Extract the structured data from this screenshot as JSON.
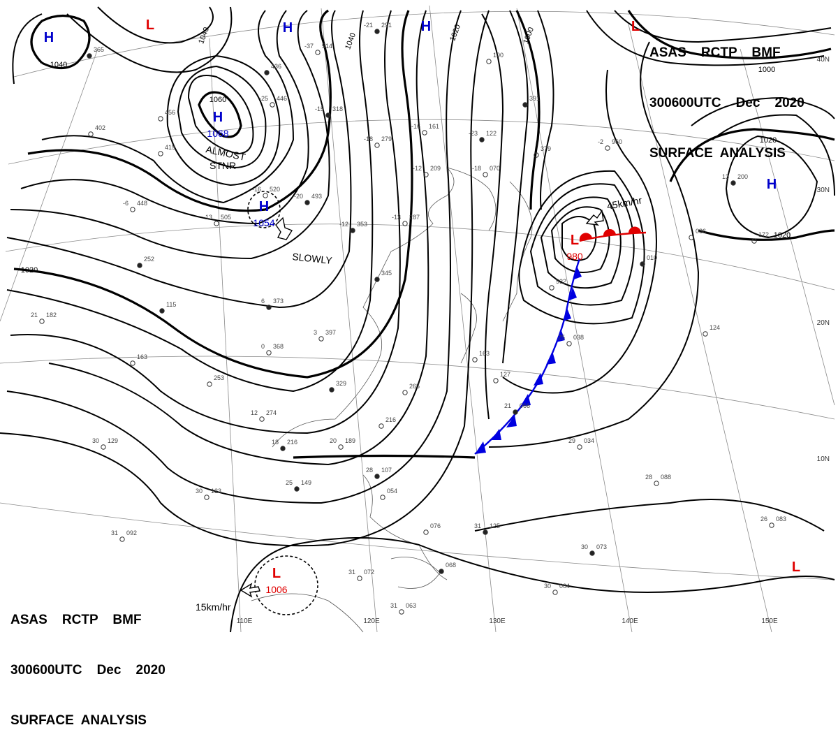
{
  "header": {
    "line1": "ASAS    RCTP    BMF",
    "line2": "300600UTC    Dec    2020",
    "line3": "SURFACE  ANALYSIS"
  },
  "pressure_centers": [
    {
      "type": "H",
      "value": "",
      "color": "#0000cc"
    },
    {
      "type": "L",
      "value": "",
      "color": "#e00000"
    },
    {
      "type": "H",
      "value": "",
      "color": "#0000cc"
    },
    {
      "type": "H",
      "value": "",
      "color": "#0000cc"
    },
    {
      "type": "L",
      "value": "",
      "color": "#e00000"
    },
    {
      "type": "H",
      "value": "1068",
      "color": "#0000cc"
    },
    {
      "type": "H",
      "value": "1054",
      "color": "#0000cc"
    },
    {
      "type": "H",
      "value": "",
      "color": "#0000cc"
    },
    {
      "type": "L",
      "value": "980",
      "color": "#e00000"
    },
    {
      "type": "L",
      "value": "1006",
      "color": "#e00000"
    },
    {
      "type": "L",
      "value": "",
      "color": "#e00000"
    }
  ],
  "annotations": {
    "almost": "ALMOST",
    "stnr": "STNR",
    "slowly": "SLOWLY",
    "speed_low_ne": "45km/hr",
    "speed_low_s": "15km/hr"
  },
  "isobar_labels": [
    "1040",
    "1040",
    "1060",
    "1040",
    "1020",
    "1000",
    "1000",
    "1020",
    "1020",
    "1020"
  ],
  "lat_labels": [
    "40N",
    "30N",
    "20N",
    "10N"
  ],
  "lon_labels": [
    "110E",
    "120E",
    "130E",
    "140E",
    "150E"
  ],
  "station_plots": [
    {
      "a": "-21",
      "b": "291"
    },
    {
      "a": "-37",
      "b": "514"
    },
    {
      "a": "-25",
      "b": "446"
    },
    {
      "a": "-15",
      "b": "318"
    },
    {
      "a": "-16",
      "b": "161"
    },
    {
      "a": "-18",
      "b": "279"
    },
    {
      "a": "-23",
      "b": "122"
    },
    {
      "a": "-18",
      "b": "070"
    },
    {
      "a": "-12",
      "b": "209"
    },
    {
      "a": "-20",
      "b": "493"
    },
    {
      "a": "-16",
      "b": "520"
    },
    {
      "a": "-13",
      "b": "505"
    },
    {
      "a": "-12",
      "b": "353"
    },
    {
      "a": "-13",
      "b": "287"
    },
    {
      "a": "-6",
      "b": "448"
    },
    {
      "a": "6",
      "b": "373"
    },
    {
      "a": "3",
      "b": "397"
    },
    {
      "a": "0",
      "b": "368"
    },
    {
      "a": "",
      "b": "252"
    },
    {
      "a": "21",
      "b": "182"
    },
    {
      "a": "",
      "b": "163"
    },
    {
      "a": "",
      "b": "115"
    },
    {
      "a": "",
      "b": "253"
    },
    {
      "a": "12",
      "b": "274"
    },
    {
      "a": "18",
      "b": "216"
    },
    {
      "a": "20",
      "b": "189"
    },
    {
      "a": "30",
      "b": "129"
    },
    {
      "a": "25",
      "b": "149"
    },
    {
      "a": "30",
      "b": "123"
    },
    {
      "a": "31",
      "b": "092"
    },
    {
      "a": "28",
      "b": "107"
    },
    {
      "a": "",
      "b": "054"
    },
    {
      "a": "31",
      "b": "072"
    },
    {
      "a": "",
      "b": "068"
    },
    {
      "a": "31",
      "b": "063"
    },
    {
      "a": "",
      "b": "076"
    },
    {
      "a": "31",
      "b": "125"
    },
    {
      "a": "29",
      "b": "034"
    },
    {
      "a": "28",
      "b": "088"
    },
    {
      "a": "30",
      "b": "073"
    },
    {
      "a": "30",
      "b": "064"
    },
    {
      "a": "26",
      "b": "083"
    },
    {
      "a": "21",
      "b": "066"
    },
    {
      "a": "25",
      "b": "038"
    },
    {
      "a": "",
      "b": "124"
    },
    {
      "a": "",
      "b": "010"
    },
    {
      "a": "",
      "b": "932"
    },
    {
      "a": "-2",
      "b": "960"
    },
    {
      "a": "13",
      "b": "200"
    },
    {
      "a": "",
      "b": "172"
    },
    {
      "a": "",
      "b": "086"
    },
    {
      "a": "",
      "b": "391"
    },
    {
      "a": "",
      "b": "100"
    },
    {
      "a": "",
      "b": "379"
    },
    {
      "a": "",
      "b": "345"
    },
    {
      "a": "",
      "b": "163"
    },
    {
      "a": "",
      "b": "127"
    },
    {
      "a": "",
      "b": "329"
    },
    {
      "a": "",
      "b": "265"
    },
    {
      "a": "",
      "b": "216"
    },
    {
      "a": "",
      "b": "436"
    },
    {
      "a": "",
      "b": "419"
    },
    {
      "a": "",
      "b": "402"
    },
    {
      "a": "",
      "b": "365"
    },
    {
      "a": "",
      "b": "456"
    }
  ]
}
